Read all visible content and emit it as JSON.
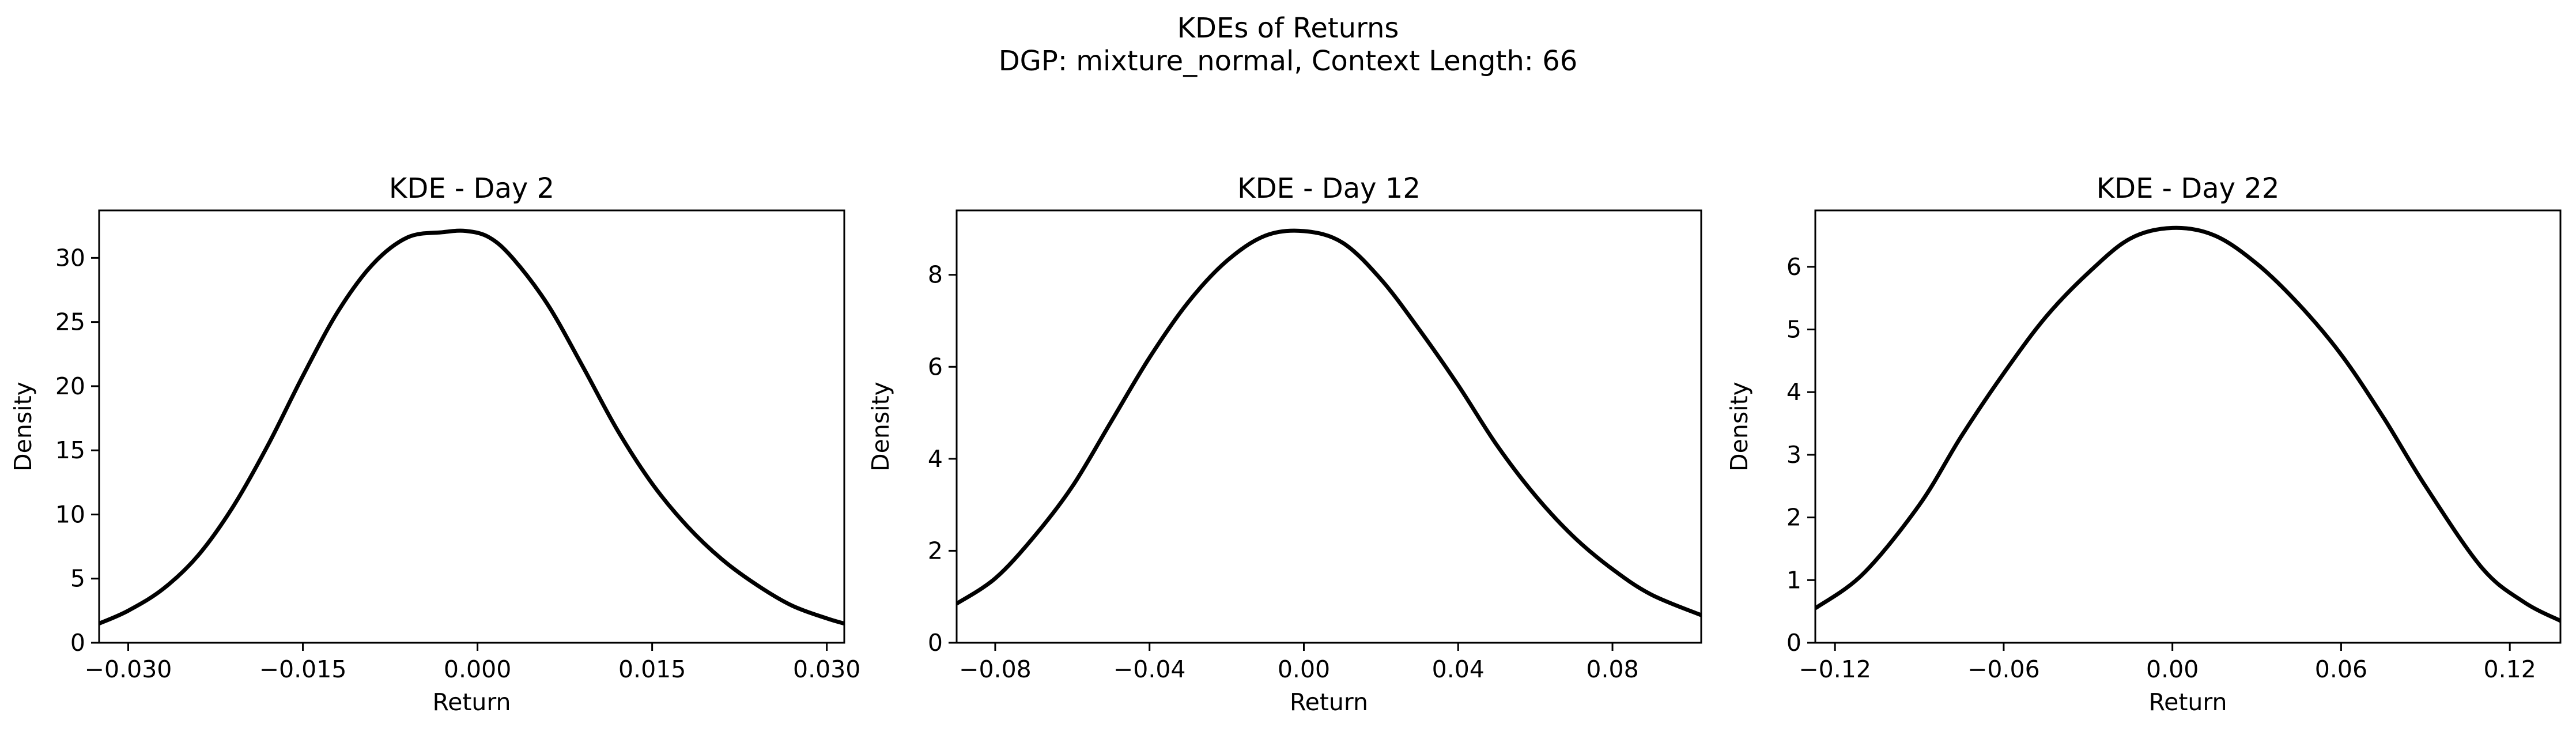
{
  "figure": {
    "title": "KDEs of Returns",
    "subtitle": "DGP: mixture_normal, Context Length: 66"
  },
  "chart_data": [
    {
      "type": "line",
      "title": "KDE - Day 2",
      "xlabel": "Return",
      "ylabel": "Density",
      "xlim": [
        -0.0325,
        0.0315
      ],
      "ylim": [
        0,
        33.7
      ],
      "xticks": [
        -0.03,
        -0.015,
        0.0,
        0.015,
        0.03
      ],
      "xtick_labels": [
        "−0.030",
        "−0.015",
        "0.000",
        "0.015",
        "0.030"
      ],
      "yticks": [
        0,
        5,
        10,
        15,
        20,
        25,
        30
      ],
      "ytick_labels": [
        "0",
        "5",
        "10",
        "15",
        "20",
        "25",
        "30"
      ],
      "grid": false,
      "series": [
        {
          "color": "#000000",
          "x": [
            -0.0325,
            -0.03,
            -0.027,
            -0.024,
            -0.021,
            -0.018,
            -0.015,
            -0.012,
            -0.009,
            -0.006,
            -0.003,
            -0.001,
            0.001,
            0.003,
            0.006,
            0.009,
            0.012,
            0.015,
            0.018,
            0.021,
            0.024,
            0.027,
            0.03,
            0.0315
          ],
          "y": [
            1.5,
            2.5,
            4.2,
            6.8,
            10.6,
            15.4,
            20.8,
            25.8,
            29.5,
            31.6,
            32.0,
            32.1,
            31.6,
            30.0,
            26.4,
            21.6,
            16.6,
            12.4,
            9.1,
            6.5,
            4.5,
            2.9,
            1.9,
            1.5
          ]
        }
      ]
    },
    {
      "type": "line",
      "title": "KDE - Day 12",
      "xlabel": "Return",
      "ylabel": "Density",
      "xlim": [
        -0.09,
        0.103
      ],
      "ylim": [
        0,
        9.4
      ],
      "xticks": [
        -0.08,
        -0.04,
        0.0,
        0.04,
        0.08
      ],
      "xtick_labels": [
        "−0.08",
        "−0.04",
        "0.00",
        "0.04",
        "0.08"
      ],
      "yticks": [
        0,
        2,
        4,
        6,
        8
      ],
      "ytick_labels": [
        "0",
        "2",
        "4",
        "6",
        "8"
      ],
      "grid": false,
      "series": [
        {
          "color": "#000000",
          "x": [
            -0.09,
            -0.08,
            -0.07,
            -0.06,
            -0.05,
            -0.04,
            -0.03,
            -0.02,
            -0.01,
            0.0,
            0.01,
            0.02,
            0.03,
            0.04,
            0.05,
            0.06,
            0.07,
            0.08,
            0.09,
            0.103
          ],
          "y": [
            0.85,
            1.4,
            2.3,
            3.4,
            4.8,
            6.2,
            7.4,
            8.3,
            8.85,
            8.95,
            8.7,
            7.9,
            6.8,
            5.6,
            4.3,
            3.2,
            2.3,
            1.6,
            1.05,
            0.6
          ]
        }
      ]
    },
    {
      "type": "line",
      "title": "KDE - Day 22",
      "xlabel": "Return",
      "ylabel": "Density",
      "xlim": [
        -0.127,
        0.138
      ],
      "ylim": [
        0,
        6.9
      ],
      "xticks": [
        -0.12,
        -0.06,
        0.0,
        0.06,
        0.12
      ],
      "xtick_labels": [
        "−0.12",
        "−0.06",
        "0.00",
        "0.06",
        "0.12"
      ],
      "yticks": [
        0,
        1,
        2,
        3,
        4,
        5,
        6
      ],
      "ytick_labels": [
        "0",
        "1",
        "2",
        "3",
        "4",
        "5",
        "6"
      ],
      "grid": false,
      "series": [
        {
          "color": "#000000",
          "x": [
            -0.127,
            -0.11,
            -0.09,
            -0.075,
            -0.06,
            -0.045,
            -0.03,
            -0.015,
            0.0,
            0.015,
            0.03,
            0.045,
            0.06,
            0.075,
            0.09,
            0.11,
            0.125,
            0.138
          ],
          "y": [
            0.55,
            1.1,
            2.2,
            3.3,
            4.3,
            5.2,
            5.9,
            6.45,
            6.62,
            6.5,
            6.05,
            5.4,
            4.6,
            3.6,
            2.5,
            1.2,
            0.65,
            0.35
          ]
        }
      ]
    }
  ]
}
